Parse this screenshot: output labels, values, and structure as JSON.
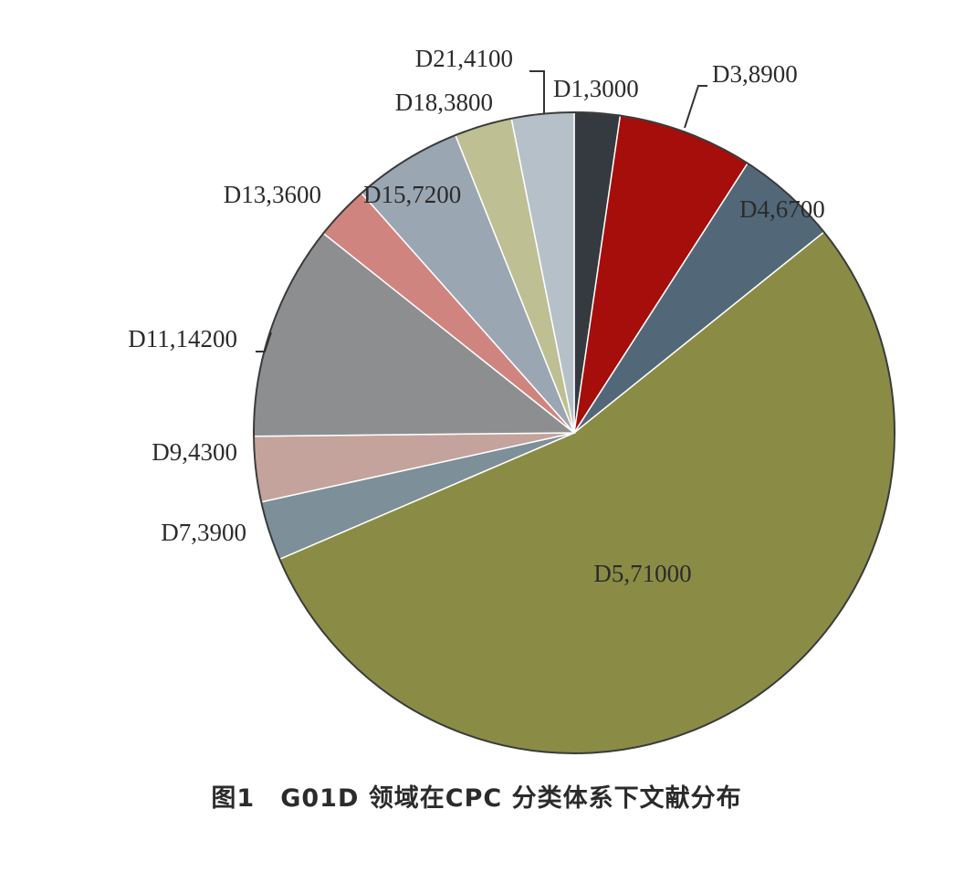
{
  "chart_data": {
    "type": "pie",
    "caption": "图1　G01D 领域在CPC 分类体系下文献分布",
    "slices": [
      {
        "label": "D1",
        "value": 3000,
        "text": "D1,3000",
        "color": "#343a40"
      },
      {
        "label": "D3",
        "value": 8900,
        "text": "D3,8900",
        "color": "#a50e0a"
      },
      {
        "label": "D4",
        "value": 6700,
        "text": "D4,6700",
        "color": "#526878"
      },
      {
        "label": "D5",
        "value": 71000,
        "text": "D5,71000",
        "color": "#8a8c45"
      },
      {
        "label": "D7",
        "value": 3900,
        "text": "D7,3900",
        "color": "#7d8f98"
      },
      {
        "label": "D9",
        "value": 4300,
        "text": "D9,4300",
        "color": "#c4a39c"
      },
      {
        "label": "D11",
        "value": 14200,
        "text": "D11,14200",
        "color": "#8c8e90"
      },
      {
        "label": "D13",
        "value": 3600,
        "text": "D13,3600",
        "color": "#d08480"
      },
      {
        "label": "D15",
        "value": 7200,
        "text": "D15,7200",
        "color": "#9aa6b1"
      },
      {
        "label": "D18",
        "value": 3800,
        "text": "D18,3800",
        "color": "#bebf93"
      },
      {
        "label": "D21",
        "value": 4100,
        "text": "D21,4100",
        "color": "#b6c0c8"
      }
    ],
    "start_angle": "12 o'clock",
    "direction": "clockwise",
    "legend": "none"
  }
}
